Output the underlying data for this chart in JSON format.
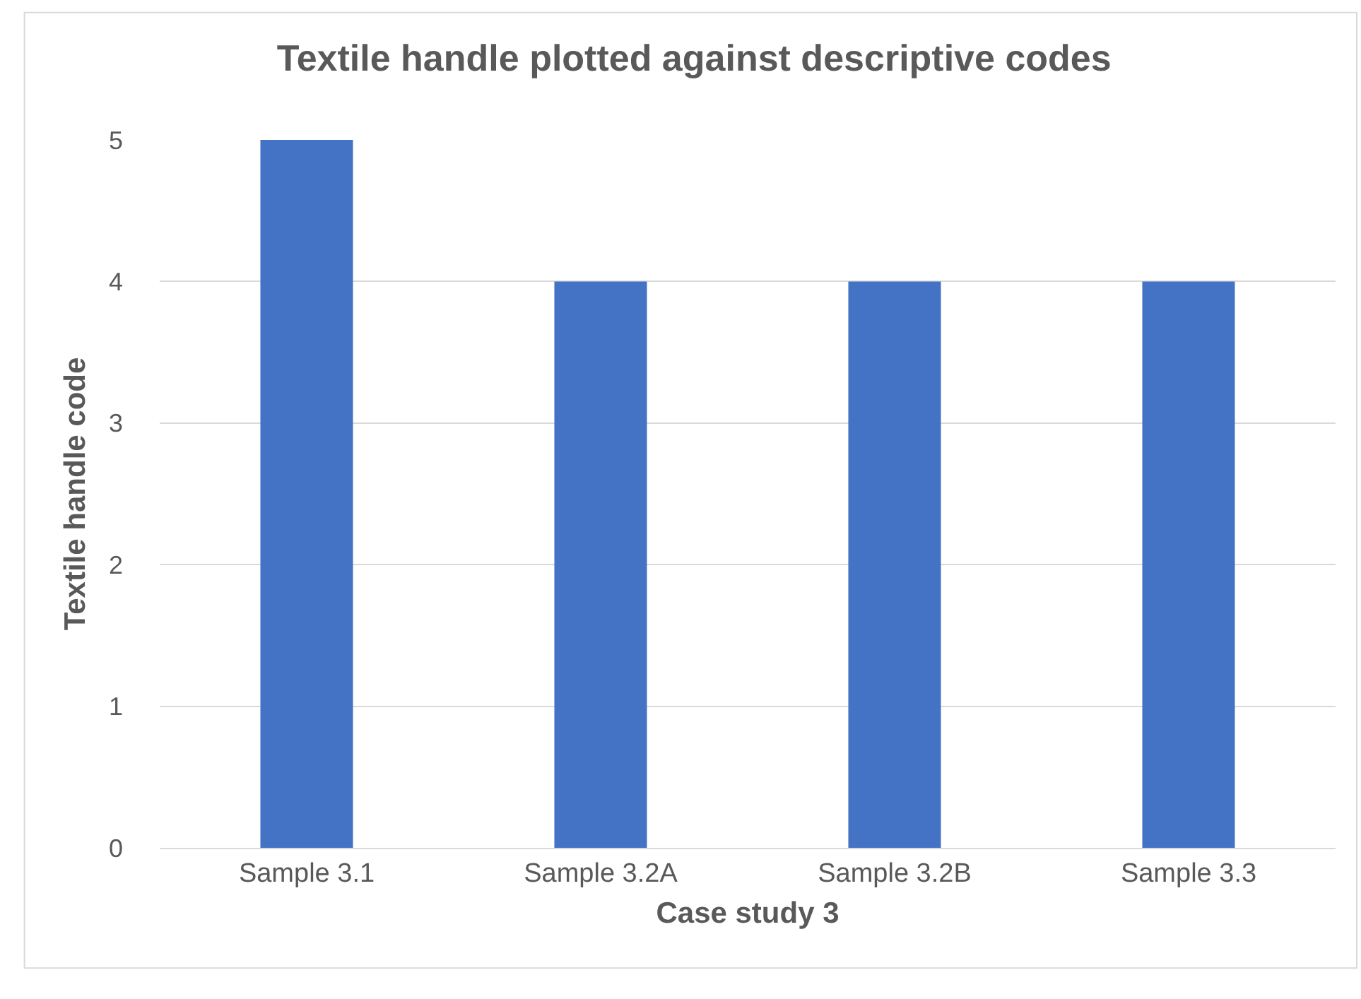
{
  "chart_data": {
    "type": "bar",
    "title": "Textile handle plotted against descriptive codes",
    "xlabel": "Case study 3",
    "ylabel": "Textile handle code",
    "categories": [
      "Sample 3.1",
      "Sample 3.2A",
      "Sample 3.2B",
      "Sample 3.3"
    ],
    "values": [
      5,
      4,
      4,
      4
    ],
    "color": "#4472c4",
    "ylim": [
      0,
      5
    ],
    "yticks": [
      0,
      1,
      2,
      3,
      4,
      5
    ],
    "grid": "y",
    "legend": false
  }
}
